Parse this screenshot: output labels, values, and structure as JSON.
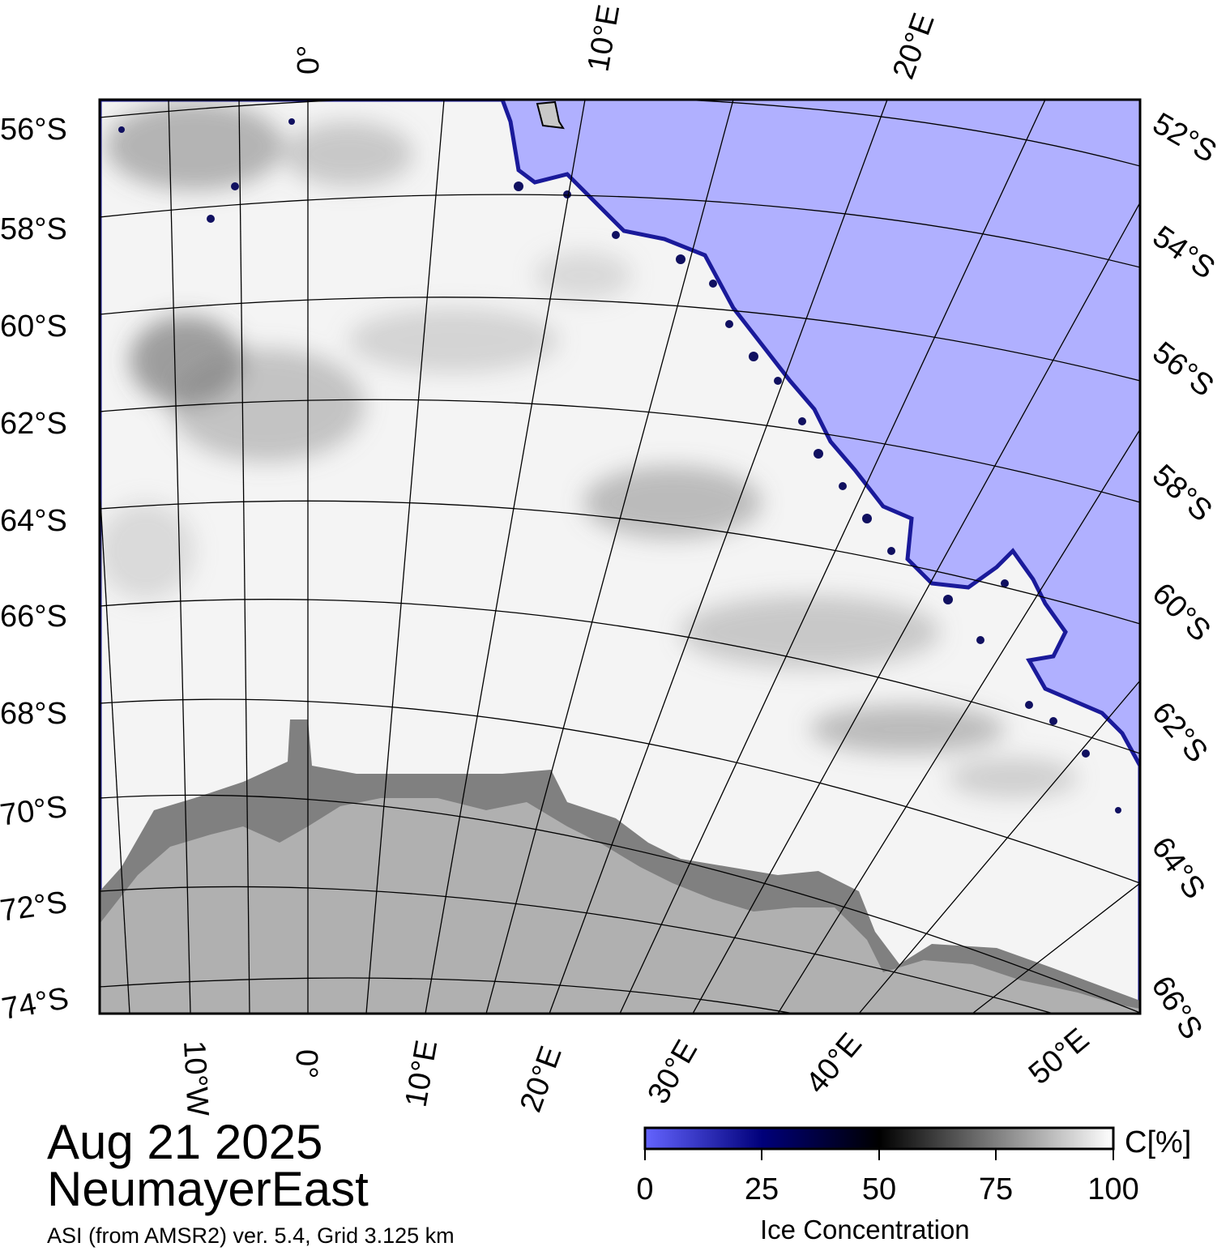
{
  "map": {
    "title_date": "Aug 21 2025",
    "region_name": "NeumayerEast",
    "source_note": "ASI (from AMSR2) ver. 5.4,  Grid 3.125 km",
    "lat_labels_left": [
      "56°S",
      "58°S",
      "60°S",
      "62°S",
      "64°S",
      "66°S",
      "68°S",
      "70°S",
      "72°S",
      "74°S"
    ],
    "lat_labels_right": [
      "52°S",
      "54°S",
      "56°S",
      "58°S",
      "60°S",
      "62°S",
      "64°S",
      "66°S"
    ],
    "lon_labels_top": [
      "0°",
      "10°E",
      "20°E"
    ],
    "lon_labels_bottom": [
      "10°W",
      "0°",
      "10°E",
      "20°E",
      "30°E",
      "40°E",
      "50°E"
    ],
    "colors": {
      "open_water": "#b0b0ff",
      "land": "#b0b0b0",
      "ice_shelf": "#808080",
      "sea_ice": "#f4f4f4",
      "low_ice_blue": "#2020c0"
    }
  },
  "colorbar": {
    "title": "Ice Concentration",
    "unit_label": "C[%]",
    "ticks": [
      "0",
      "25",
      "50",
      "75",
      "100"
    ],
    "min": 0,
    "max": 100,
    "stops": [
      {
        "value": 0,
        "color": "#6464ff"
      },
      {
        "value": 25,
        "color": "#00007a"
      },
      {
        "value": 50,
        "color": "#000000"
      },
      {
        "value": 100,
        "color": "#ffffff"
      }
    ]
  }
}
